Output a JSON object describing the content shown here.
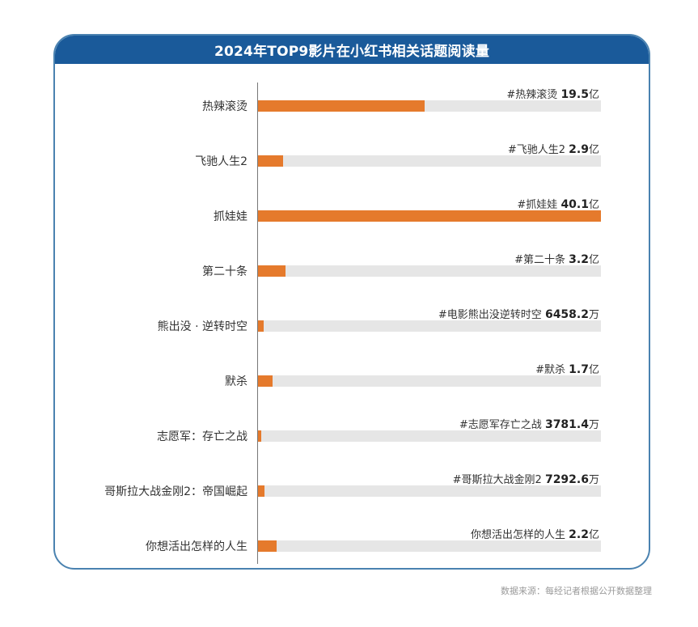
{
  "header": {
    "title": "2024年TOP9影片在小红书相关话题阅读量"
  },
  "source": "数据来源：每经记者根据公开数据整理",
  "colors": {
    "header": "#1a5a9a",
    "bar": "#e57a2c",
    "track": "#e6e6e6",
    "border": "#4a82b0"
  },
  "rows": [
    {
      "category": "热辣滚烫",
      "tag": "#热辣滚烫",
      "num": "19.5",
      "unit": "亿",
      "value_yi": 19.5
    },
    {
      "category": "飞驰人生2",
      "tag": "#飞驰人生2",
      "num": "2.9",
      "unit": "亿",
      "value_yi": 2.9
    },
    {
      "category": "抓娃娃",
      "tag": "#抓娃娃",
      "num": "40.1",
      "unit": "亿",
      "value_yi": 40.1
    },
    {
      "category": "第二十条",
      "tag": "#第二十条",
      "num": "3.2",
      "unit": "亿",
      "value_yi": 3.2
    },
    {
      "category": "熊出没 · 逆转时空",
      "tag": "#电影熊出没逆转时空",
      "num": "6458.2",
      "unit": "万",
      "value_yi": 0.64582
    },
    {
      "category": "默杀",
      "tag": "#默杀",
      "num": "1.7",
      "unit": "亿",
      "value_yi": 1.7
    },
    {
      "category": "志愿军：存亡之战",
      "tag": "#志愿军存亡之战",
      "num": "3781.4",
      "unit": "万",
      "value_yi": 0.37814
    },
    {
      "category": "哥斯拉大战金刚2：帝国崛起",
      "tag": "#哥斯拉大战金刚2",
      "num": "7292.6",
      "unit": "万",
      "value_yi": 0.72926
    },
    {
      "category": "你想活出怎样的人生",
      "tag": "你想活出怎样的人生",
      "num": "2.2",
      "unit": "亿",
      "value_yi": 2.2
    }
  ],
  "chart_data": {
    "type": "bar",
    "orientation": "horizontal",
    "title": "2024年TOP9影片在小红书相关话题阅读量",
    "categories": [
      "热辣滚烫",
      "飞驰人生2",
      "抓娃娃",
      "第二十条",
      "熊出没 · 逆转时空",
      "默杀",
      "志愿军：存亡之战",
      "哥斯拉大战金刚2：帝国崛起",
      "你想活出怎样的人生"
    ],
    "values": [
      19.5,
      2.9,
      40.1,
      3.2,
      0.64582,
      1.7,
      0.37814,
      0.72926,
      2.2
    ],
    "value_labels": [
      "#热辣滚烫 19.5亿",
      "#飞驰人生2 2.9亿",
      "#抓娃娃 40.1亿",
      "#第二十条 3.2亿",
      "#电影熊出没逆转时空 6458.2万",
      "#默杀 1.7亿",
      "#志愿军存亡之战 3781.4万",
      "#哥斯拉大战金刚2 7292.6万",
      "你想活出怎样的人生 2.2亿"
    ],
    "unit": "亿次阅读",
    "xlim": [
      0,
      40.1
    ],
    "xlabel": "",
    "ylabel": "",
    "grid": false,
    "legend": null,
    "source": "数据来源：每经记者根据公开数据整理"
  }
}
